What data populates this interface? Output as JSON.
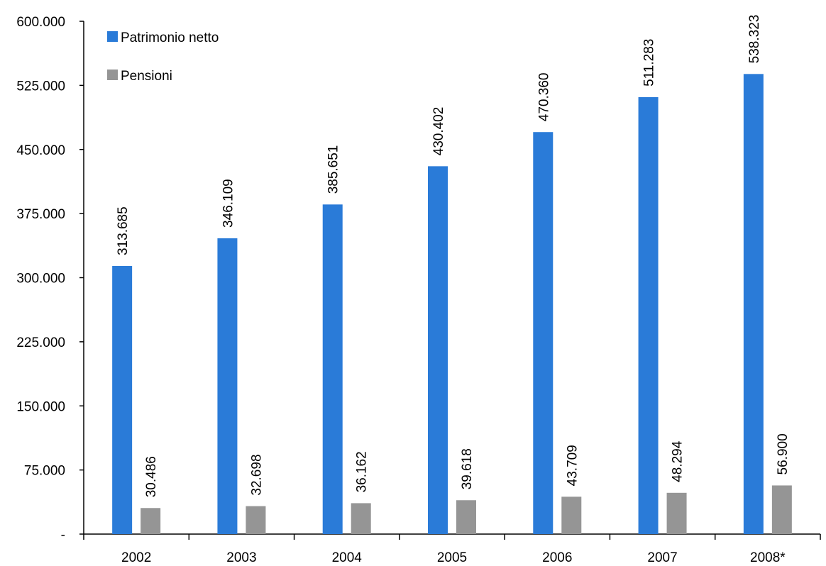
{
  "chart_data": {
    "type": "bar",
    "categories": [
      "2002",
      "2003",
      "2004",
      "2005",
      "2006",
      "2007",
      "2008*"
    ],
    "series": [
      {
        "name": "Patrimonio netto",
        "color": "#2a7bd8",
        "values": [
          313685,
          346109,
          385651,
          430402,
          470360,
          511283,
          538323
        ],
        "labels": [
          "313.685",
          "346.109",
          "385.651",
          "430.402",
          "470.360",
          "511.283",
          "538.323"
        ]
      },
      {
        "name": "Pensioni",
        "color": "#959595",
        "values": [
          30486,
          32698,
          36162,
          39618,
          43709,
          48294,
          56900
        ],
        "labels": [
          "30.486",
          "32.698",
          "36.162",
          "39.618",
          "43.709",
          "48.294",
          "56.900"
        ]
      }
    ],
    "y_ticks": [
      0,
      75000,
      150000,
      225000,
      300000,
      375000,
      450000,
      525000,
      600000
    ],
    "y_tick_labels": [
      "-",
      "75.000",
      "150.000",
      "225.000",
      "300.000",
      "375.000",
      "450.000",
      "525.000",
      "600.000"
    ],
    "ylim": [
      0,
      600000
    ],
    "legend_position": "top-left",
    "grid": false
  }
}
